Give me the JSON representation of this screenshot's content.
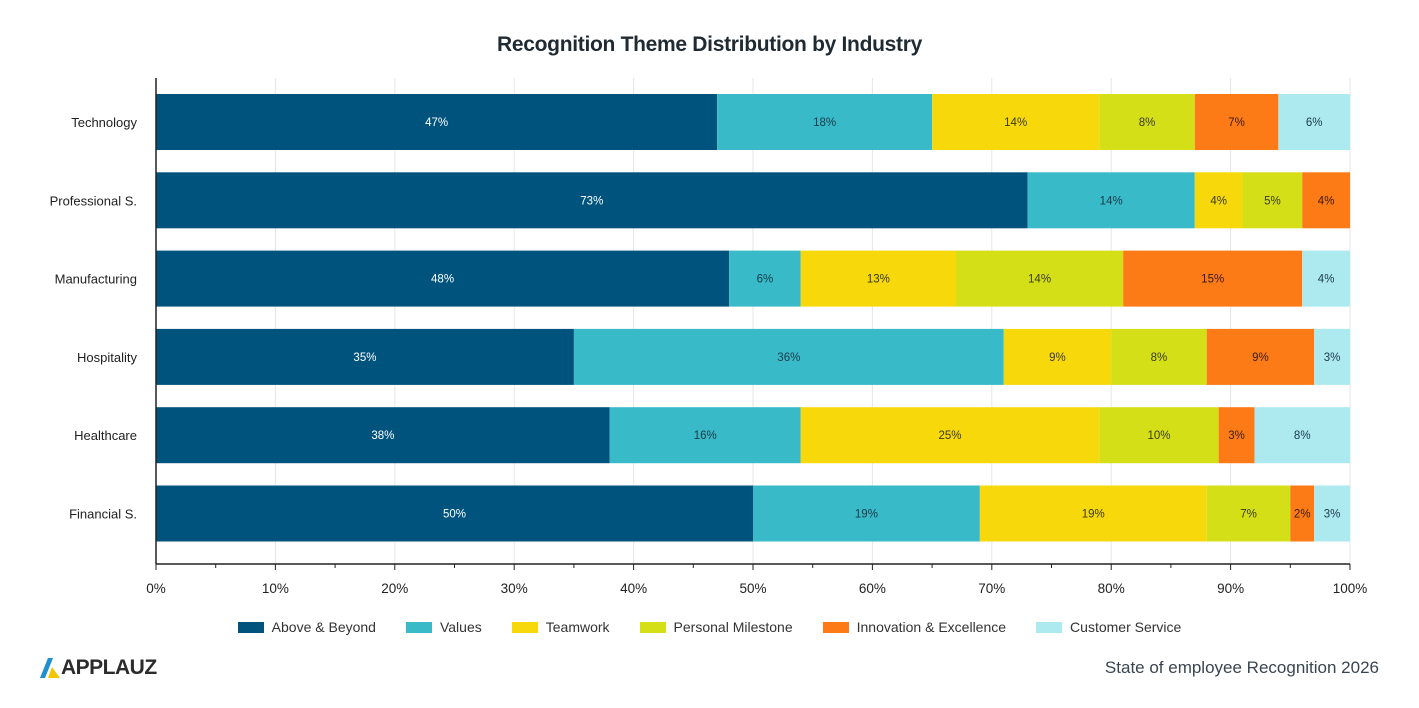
{
  "chart_data": {
    "type": "bar",
    "orientation": "horizontal",
    "stacked": true,
    "title": "Recognition Theme Distribution by Industry",
    "categories": [
      "Technology",
      "Professional S.",
      "Manufacturing",
      "Hospitality",
      "Healthcare",
      "Financial S."
    ],
    "xlim": [
      0,
      100
    ],
    "xticks": [
      "0%",
      "10%",
      "20%",
      "30%",
      "40%",
      "50%",
      "60%",
      "70%",
      "80%",
      "90%",
      "100%"
    ],
    "grid": true,
    "legend_position": "bottom",
    "series": [
      {
        "name": "Above & Beyond",
        "color": "#00537d",
        "label_color": "#ffffff",
        "values": [
          47,
          73,
          48,
          35,
          38,
          50
        ]
      },
      {
        "name": "Values",
        "color": "#38bac8",
        "label_color": "#1b3a4a",
        "values": [
          18,
          14,
          6,
          36,
          16,
          19
        ]
      },
      {
        "name": "Teamwork",
        "color": "#f6d80b",
        "label_color": "#3a3a1a",
        "values": [
          14,
          4,
          13,
          9,
          25,
          19
        ]
      },
      {
        "name": "Personal Milestone",
        "color": "#d4df17",
        "label_color": "#3a3a1a",
        "values": [
          8,
          5,
          14,
          8,
          10,
          7
        ]
      },
      {
        "name": "Innovation & Excellence",
        "color": "#fd7b17",
        "label_color": "#3a1a0a",
        "values": [
          7,
          4,
          15,
          9,
          3,
          2
        ]
      },
      {
        "name": "Customer Service",
        "color": "#aceaf0",
        "label_color": "#1b3a4a",
        "values": [
          6,
          0,
          4,
          3,
          8,
          3
        ]
      }
    ]
  },
  "brand": {
    "name": "APPLAUZ"
  },
  "footer": {
    "note": "State of employee Recognition 2026"
  }
}
